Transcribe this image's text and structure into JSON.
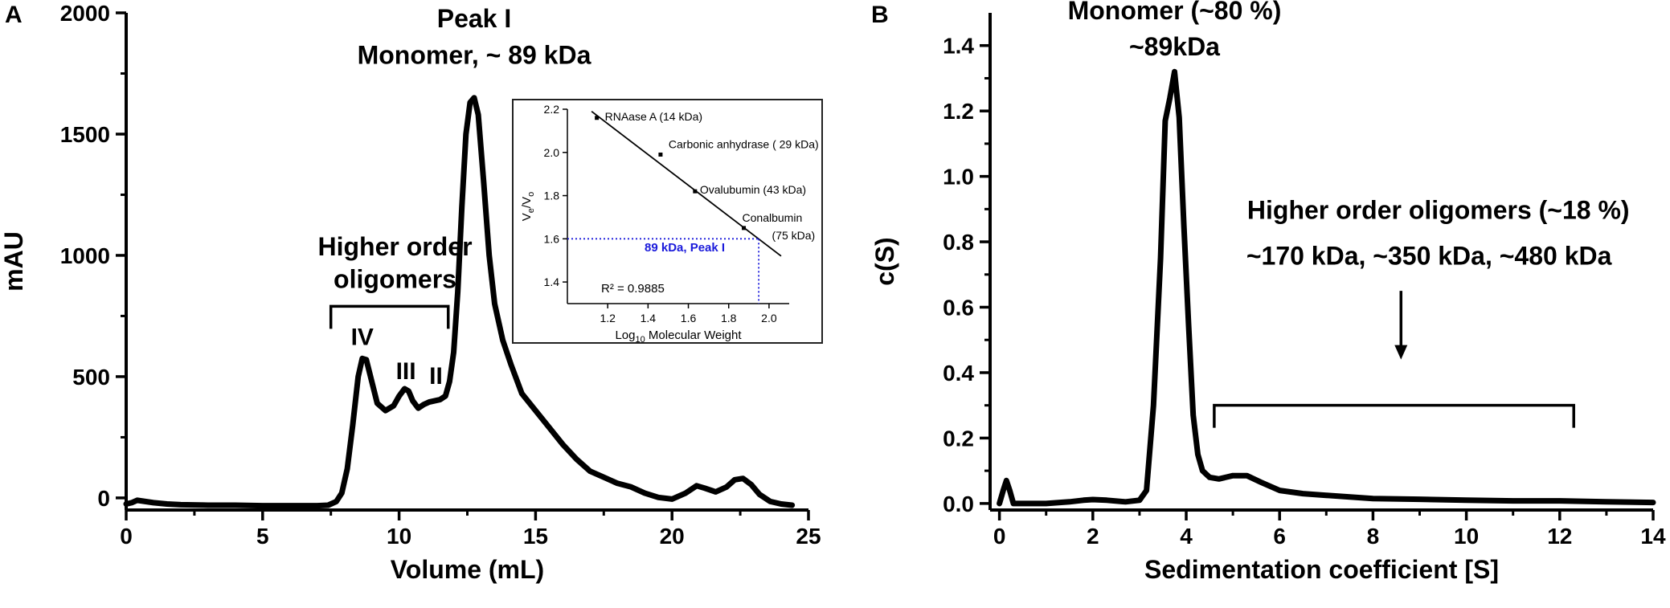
{
  "chart_data": [
    {
      "type": "line",
      "panel_label": "A",
      "xlabel": "Volume (mL)",
      "ylabel": "mAU",
      "xlim": [
        0,
        25
      ],
      "ylim": [
        -50,
        2000
      ],
      "x_ticks": [
        "0",
        "5",
        "10",
        "15",
        "20",
        "25"
      ],
      "y_ticks": [
        "0",
        "500",
        "1000",
        "1500",
        "2000"
      ],
      "x": [
        0.0,
        0.2,
        0.4,
        0.7,
        1.0,
        1.5,
        2.0,
        3.0,
        4.0,
        5.0,
        6.0,
        7.0,
        7.4,
        7.7,
        7.9,
        8.1,
        8.3,
        8.5,
        8.65,
        8.8,
        9.0,
        9.2,
        9.5,
        9.8,
        10.0,
        10.2,
        10.35,
        10.5,
        10.7,
        10.9,
        11.1,
        11.3,
        11.5,
        11.7,
        11.85,
        12.0,
        12.15,
        12.3,
        12.45,
        12.6,
        12.75,
        12.9,
        13.1,
        13.3,
        13.5,
        13.8,
        14.1,
        14.5,
        15.0,
        15.5,
        16.0,
        16.5,
        17.0,
        17.5,
        18.0,
        18.5,
        19.0,
        19.5,
        20.0,
        20.5,
        20.9,
        21.2,
        21.6,
        22.0,
        22.3,
        22.6,
        22.9,
        23.2,
        23.6,
        24.0,
        24.4
      ],
      "y": [
        -25,
        -20,
        -10,
        -15,
        -20,
        -25,
        -28,
        -30,
        -30,
        -32,
        -32,
        -32,
        -30,
        -15,
        20,
        120,
        300,
        500,
        575,
        570,
        480,
        390,
        360,
        380,
        420,
        450,
        440,
        400,
        370,
        385,
        395,
        400,
        405,
        420,
        480,
        600,
        850,
        1200,
        1500,
        1630,
        1650,
        1580,
        1300,
        1000,
        800,
        650,
        550,
        430,
        360,
        290,
        220,
        160,
        110,
        85,
        60,
        45,
        20,
        2,
        -5,
        20,
        50,
        40,
        25,
        45,
        75,
        80,
        55,
        15,
        -15,
        -25,
        -30
      ],
      "annotations": [
        {
          "text": "Peak I",
          "x": 12.75,
          "y": 1940
        },
        {
          "text": "Monomer, ~ 89 kDa",
          "x": 12.75,
          "y": 1790
        },
        {
          "text": "Higher order",
          "x": 9.85,
          "y": 1000
        },
        {
          "text": "oligomers",
          "x": 9.85,
          "y": 865
        },
        {
          "text": "IV",
          "x": 8.65,
          "y": 630
        },
        {
          "text": "III",
          "x": 10.25,
          "y": 490
        },
        {
          "text": "II",
          "x": 11.35,
          "y": 470
        }
      ],
      "bracket": {
        "x_start": 7.5,
        "x_end": 11.8,
        "y": 790
      },
      "inset": {
        "type": "scatter",
        "xlabel_prefix": "Log",
        "xlabel_sub": "10",
        "xlabel_suffix": " Molecular Weight",
        "ylabel_v": "V",
        "ylabel_e": "e",
        "ylabel_slash": "/V",
        "ylabel_o": "o",
        "xlim": [
          1.0,
          2.1
        ],
        "ylim": [
          1.3,
          2.2
        ],
        "x_ticks": [
          "1.2",
          "1.4",
          "1.6",
          "1.8",
          "2.0"
        ],
        "y_ticks": [
          "1.4",
          "1.6",
          "1.8",
          "2.0",
          "2.2"
        ],
        "points": [
          {
            "name": "RNAase A (14 kDa)",
            "x": 1.146,
            "y": 2.16
          },
          {
            "name": "Carbonic anhydrase ( 29 kDa)",
            "x": 1.462,
            "y": 1.99
          },
          {
            "name": "Ovalubumin (43 kDa)",
            "x": 1.633,
            "y": 1.82
          },
          {
            "name": "Conalbumin",
            "name2": "(75 kDa)",
            "x": 1.875,
            "y": 1.65
          }
        ],
        "fit_line": {
          "x": [
            1.12,
            2.06
          ],
          "y": [
            2.19,
            1.52
          ]
        },
        "r_squared": "R² = 0.9885",
        "marker_label": "89 kDa, Peak I",
        "marker": {
          "x": 1.949,
          "y": 1.6
        },
        "marker_color": "#1a1adb"
      }
    },
    {
      "type": "line",
      "panel_label": "B",
      "xlabel": "Sedimentation coefficient [S]",
      "ylabel": "c(S)",
      "xlim": [
        -0.2,
        14
      ],
      "ylim": [
        -0.02,
        1.5
      ],
      "x_ticks": [
        "0",
        "2",
        "4",
        "6",
        "8",
        "10",
        "12",
        "14"
      ],
      "y_ticks": [
        "0.0",
        "0.2",
        "0.4",
        "0.6",
        "0.8",
        "1.0",
        "1.2",
        "1.4"
      ],
      "x": [
        0.0,
        0.08,
        0.15,
        0.22,
        0.3,
        0.5,
        1.0,
        1.5,
        1.8,
        2.0,
        2.3,
        2.7,
        3.0,
        3.15,
        3.3,
        3.45,
        3.55,
        3.65,
        3.75,
        3.85,
        3.95,
        4.05,
        4.15,
        4.25,
        4.35,
        4.5,
        4.7,
        5.0,
        5.3,
        5.6,
        6.0,
        6.5,
        7.0,
        8.0,
        9.0,
        10.0,
        11.0,
        12.0,
        13.0,
        14.0
      ],
      "y": [
        0.0,
        0.04,
        0.07,
        0.04,
        0.0,
        0.0,
        0.0,
        0.005,
        0.01,
        0.012,
        0.01,
        0.005,
        0.01,
        0.04,
        0.3,
        0.75,
        1.17,
        1.24,
        1.32,
        1.18,
        0.85,
        0.55,
        0.27,
        0.15,
        0.1,
        0.08,
        0.075,
        0.085,
        0.085,
        0.065,
        0.04,
        0.03,
        0.025,
        0.015,
        0.013,
        0.01,
        0.008,
        0.008,
        0.005,
        0.003
      ],
      "annotations": [
        {
          "text": "Monomer (~80 %)",
          "x": 3.75,
          "y": 1.48
        },
        {
          "text": "~89kDa",
          "x": 3.75,
          "y": 1.37
        },
        {
          "text": "Higher order oligomers (~18 %)",
          "x": 9.4,
          "y": 0.87
        },
        {
          "text": "~170 kDa, ~350 kDa, ~480 kDa",
          "x": 9.2,
          "y": 0.73
        }
      ],
      "bracket": {
        "x_start": 4.6,
        "x_end": 12.3,
        "y": 0.3
      },
      "arrow": {
        "x": 8.6,
        "y_from": 0.65,
        "y_to": 0.44
      }
    }
  ]
}
